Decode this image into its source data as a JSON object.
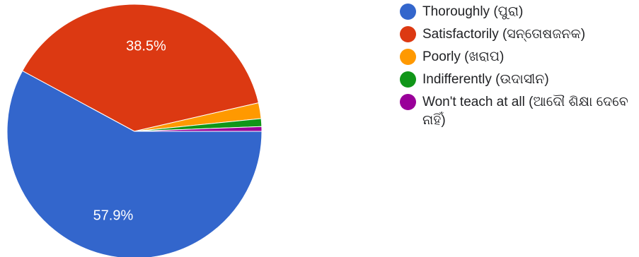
{
  "chart_data": {
    "type": "pie",
    "categories": [
      "Thoroughly (ପୁରା)",
      "Satisfactorily (ସନ୍ତୋଷଜନକ)",
      "Poorly (ଖରାପ)",
      "Indifferently (ଉଦାସୀନ)",
      "Won't teach at all (ଆଦୌ ଶିକ୍ଷା ଦେବେ ନାହିଁ)"
    ],
    "values": [
      57.9,
      38.5,
      2.0,
      1.0,
      0.6
    ],
    "data_labels": [
      "57.9%",
      "38.5%",
      "",
      "",
      ""
    ],
    "colors": [
      "#3366cc",
      "#dc3912",
      "#ff9900",
      "#109618",
      "#990099"
    ],
    "legend_position": "right"
  }
}
